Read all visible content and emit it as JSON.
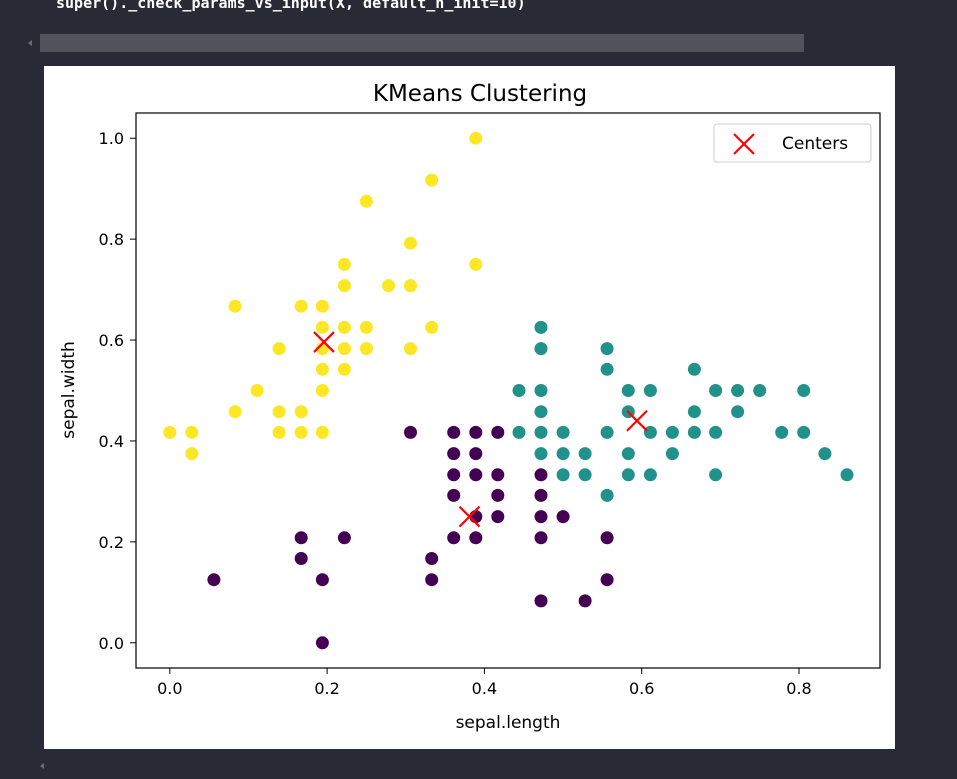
{
  "console": {
    "warning_line": "super()._check_params_vs_input(X, default_n_init=10)"
  },
  "colors": {
    "background": "#282a36",
    "scrollbar": "#50525c",
    "cluster_0": "#440154",
    "cluster_1": "#21918c",
    "cluster_2": "#fde725",
    "centers": "#ff0000"
  },
  "chart_data": {
    "type": "scatter",
    "title": "KMeans Clustering",
    "xlabel": "sepal.length",
    "ylabel": "sepal.width",
    "xlim": [
      -0.043,
      0.903
    ],
    "ylim": [
      -0.05,
      1.05
    ],
    "xticks": [
      "0.0",
      "0.2",
      "0.4",
      "0.6",
      "0.8"
    ],
    "yticks": [
      "0.0",
      "0.2",
      "0.4",
      "0.6",
      "0.8",
      "1.0"
    ],
    "grid": false,
    "legend": {
      "position": "top-right",
      "entries": [
        "Centers"
      ]
    },
    "series": [
      {
        "color": "#fde725",
        "points": [
          [
            0.389,
            1.0
          ],
          [
            0.333,
            0.917
          ],
          [
            0.25,
            0.875
          ],
          [
            0.306,
            0.792
          ],
          [
            0.222,
            0.75
          ],
          [
            0.389,
            0.75
          ],
          [
            0.222,
            0.708
          ],
          [
            0.278,
            0.708
          ],
          [
            0.306,
            0.708
          ],
          [
            0.083,
            0.667
          ],
          [
            0.167,
            0.667
          ],
          [
            0.194,
            0.667
          ],
          [
            0.194,
            0.625
          ],
          [
            0.222,
            0.625
          ],
          [
            0.25,
            0.625
          ],
          [
            0.333,
            0.625
          ],
          [
            0.139,
            0.583
          ],
          [
            0.194,
            0.583
          ],
          [
            0.222,
            0.583
          ],
          [
            0.25,
            0.583
          ],
          [
            0.306,
            0.583
          ],
          [
            0.194,
            0.542
          ],
          [
            0.222,
            0.542
          ],
          [
            0.111,
            0.5
          ],
          [
            0.194,
            0.5
          ],
          [
            0.083,
            0.458
          ],
          [
            0.139,
            0.458
          ],
          [
            0.167,
            0.458
          ],
          [
            0.0,
            0.417
          ],
          [
            0.028,
            0.417
          ],
          [
            0.139,
            0.417
          ],
          [
            0.167,
            0.417
          ],
          [
            0.194,
            0.417
          ],
          [
            0.028,
            0.375
          ]
        ]
      },
      {
        "color": "#21918c",
        "points": [
          [
            0.472,
            0.625
          ],
          [
            0.472,
            0.583
          ],
          [
            0.556,
            0.583
          ],
          [
            0.556,
            0.542
          ],
          [
            0.667,
            0.542
          ],
          [
            0.444,
            0.5
          ],
          [
            0.472,
            0.5
          ],
          [
            0.583,
            0.5
          ],
          [
            0.611,
            0.5
          ],
          [
            0.694,
            0.5
          ],
          [
            0.722,
            0.5
          ],
          [
            0.75,
            0.5
          ],
          [
            0.806,
            0.5
          ],
          [
            0.472,
            0.458
          ],
          [
            0.583,
            0.458
          ],
          [
            0.667,
            0.458
          ],
          [
            0.722,
            0.458
          ],
          [
            0.444,
            0.417
          ],
          [
            0.472,
            0.417
          ],
          [
            0.5,
            0.417
          ],
          [
            0.556,
            0.417
          ],
          [
            0.611,
            0.417
          ],
          [
            0.639,
            0.417
          ],
          [
            0.667,
            0.417
          ],
          [
            0.694,
            0.417
          ],
          [
            0.778,
            0.417
          ],
          [
            0.806,
            0.417
          ],
          [
            0.472,
            0.375
          ],
          [
            0.5,
            0.375
          ],
          [
            0.528,
            0.375
          ],
          [
            0.583,
            0.375
          ],
          [
            0.639,
            0.375
          ],
          [
            0.833,
            0.375
          ],
          [
            0.5,
            0.333
          ],
          [
            0.528,
            0.333
          ],
          [
            0.583,
            0.333
          ],
          [
            0.611,
            0.333
          ],
          [
            0.694,
            0.333
          ],
          [
            0.861,
            0.333
          ],
          [
            0.556,
            0.292
          ]
        ]
      },
      {
        "color": "#440154",
        "points": [
          [
            0.306,
            0.417
          ],
          [
            0.361,
            0.417
          ],
          [
            0.389,
            0.417
          ],
          [
            0.417,
            0.417
          ],
          [
            0.361,
            0.375
          ],
          [
            0.389,
            0.375
          ],
          [
            0.361,
            0.333
          ],
          [
            0.389,
            0.333
          ],
          [
            0.417,
            0.333
          ],
          [
            0.472,
            0.333
          ],
          [
            0.361,
            0.292
          ],
          [
            0.417,
            0.292
          ],
          [
            0.472,
            0.292
          ],
          [
            0.389,
            0.25
          ],
          [
            0.417,
            0.25
          ],
          [
            0.472,
            0.25
          ],
          [
            0.5,
            0.25
          ],
          [
            0.167,
            0.208
          ],
          [
            0.222,
            0.208
          ],
          [
            0.361,
            0.208
          ],
          [
            0.389,
            0.208
          ],
          [
            0.472,
            0.208
          ],
          [
            0.556,
            0.208
          ],
          [
            0.167,
            0.167
          ],
          [
            0.333,
            0.167
          ],
          [
            0.056,
            0.125
          ],
          [
            0.194,
            0.125
          ],
          [
            0.333,
            0.125
          ],
          [
            0.556,
            0.125
          ],
          [
            0.472,
            0.083
          ],
          [
            0.528,
            0.083
          ],
          [
            0.194,
            0.0
          ]
        ]
      }
    ],
    "centers": [
      [
        0.196,
        0.596
      ],
      [
        0.381,
        0.25
      ],
      [
        0.594,
        0.44
      ]
    ]
  }
}
